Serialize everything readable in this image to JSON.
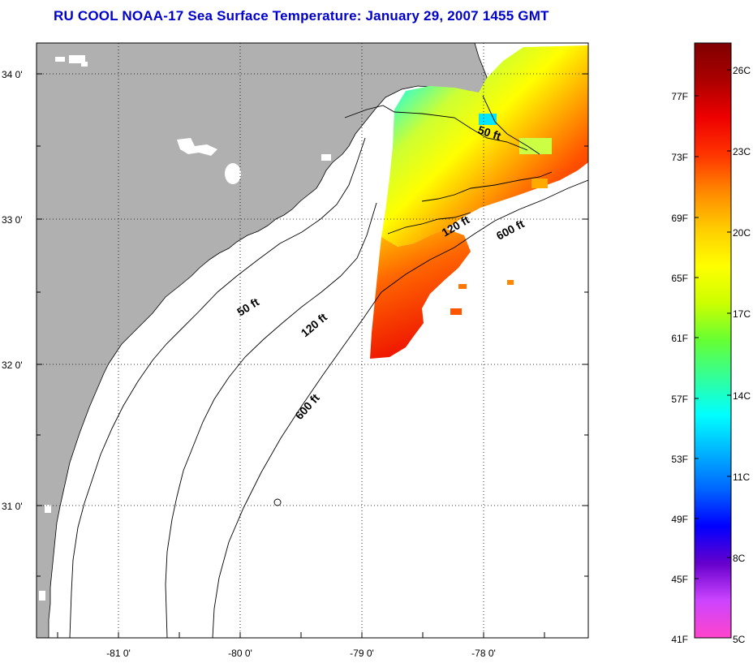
{
  "title": "RU COOL  NOAA-17  Sea Surface Temperature:  January 29, 2007 1455 GMT",
  "map": {
    "lat_labels": [
      "34 0'",
      "33 0'",
      "32 0'",
      "31 0'"
    ],
    "lon_labels": [
      "-81 0'",
      "-80 0'",
      "-79 0'",
      "-78 0'"
    ],
    "grid": true,
    "contours": [
      {
        "label": "50 ft",
        "depth_ft": 50
      },
      {
        "label": "120 ft",
        "depth_ft": 120
      },
      {
        "label": "600 ft",
        "depth_ft": 600
      }
    ],
    "contour_label_instances": [
      "50 ft",
      "120 ft",
      "600 ft",
      "50 ft",
      "120 ft",
      "600 ft"
    ],
    "colors": {
      "land": "#b0b0b0",
      "ocean": "#ffffff",
      "coast": "#000000"
    }
  },
  "colorbar": {
    "fahrenheit_labels": [
      "77F",
      "73F",
      "69F",
      "65F",
      "61F",
      "57F",
      "53F",
      "49F",
      "45F",
      "41F"
    ],
    "celsius_labels": [
      "26C",
      "23C",
      "20C",
      "17C",
      "14C",
      "11C",
      "8C",
      "5C"
    ],
    "gradient": [
      "#ff44cc",
      "#cc44ff",
      "#6600cc",
      "#0000ff",
      "#0066ff",
      "#00b4ff",
      "#00ffff",
      "#33ff99",
      "#66ff33",
      "#ccff00",
      "#ffff00",
      "#ffcc00",
      "#ff8800",
      "#ff3300",
      "#ee0000",
      "#aa0000",
      "#800000"
    ]
  }
}
